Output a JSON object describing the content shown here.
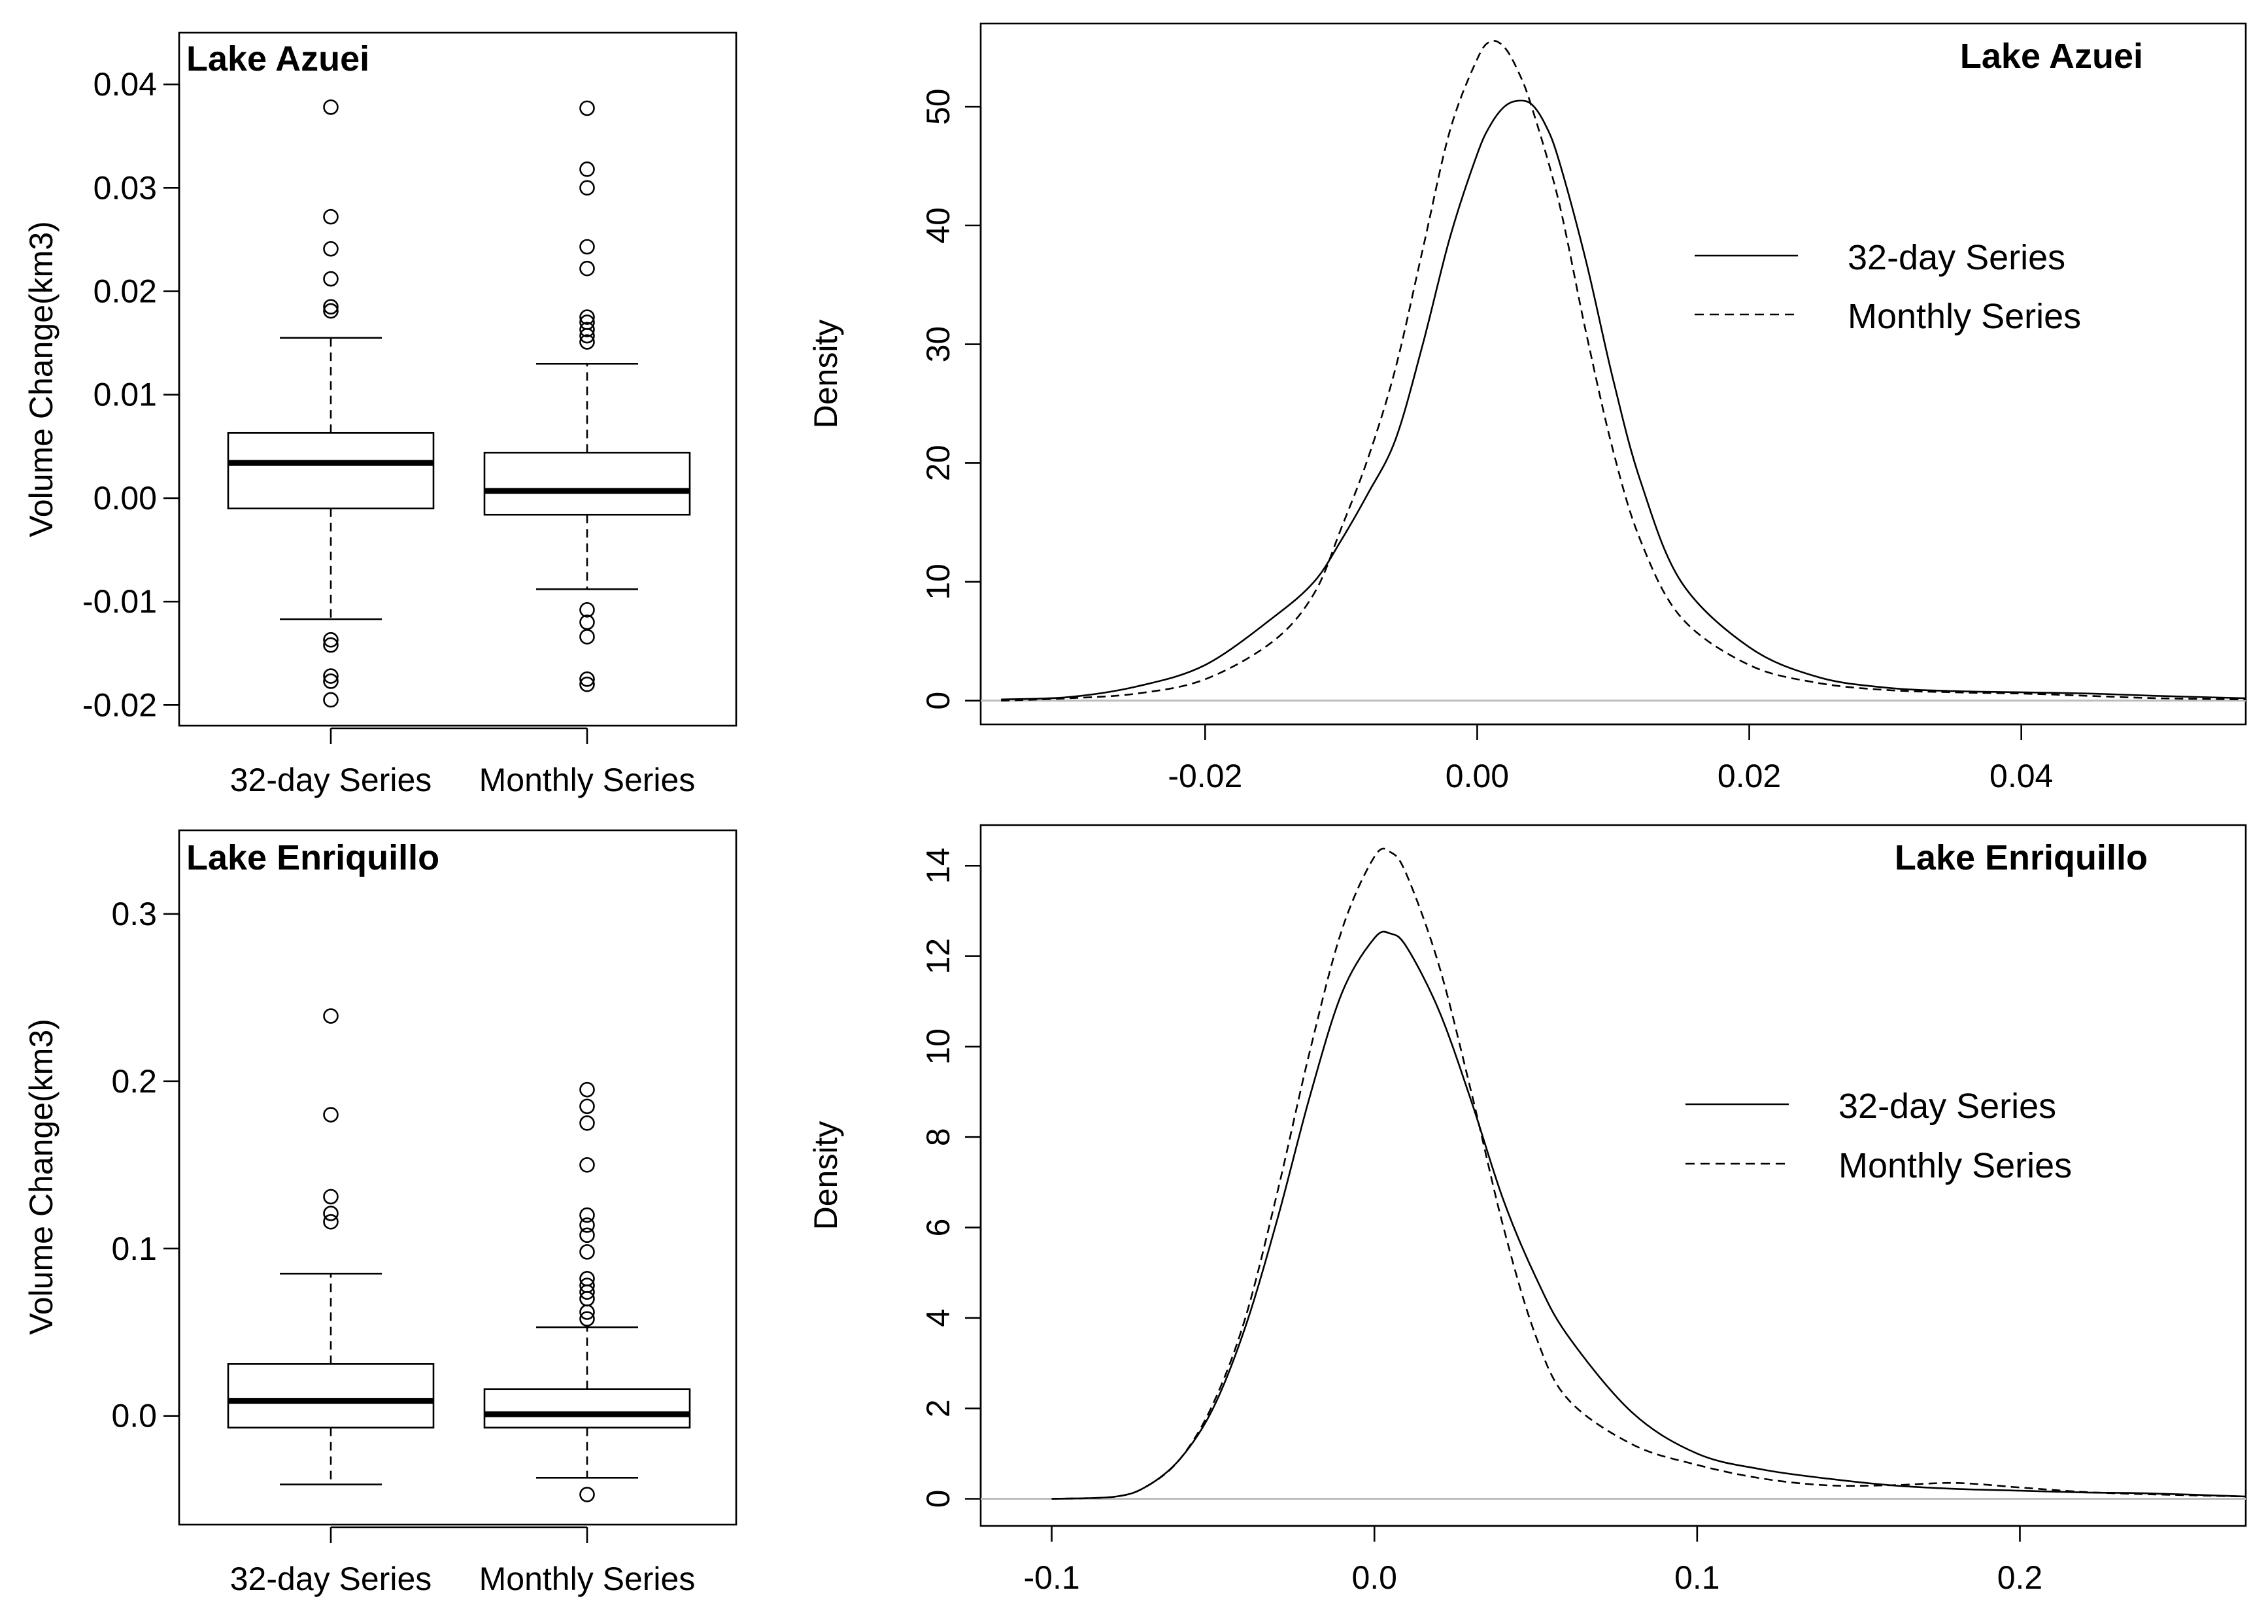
{
  "figure": {
    "panels": [
      {
        "id": "box-azuei",
        "title": "Lake Azuei",
        "ylabel": "Volume Change(km3)"
      },
      {
        "id": "dens-azuei",
        "title": "Lake Azuei",
        "ylabel": "Density"
      },
      {
        "id": "box-enriquillo",
        "title": "Lake Enriquillo",
        "ylabel": "Volume Change(km3)"
      },
      {
        "id": "dens-enriquillo",
        "title": "Lake Enriquillo",
        "ylabel": "Density"
      }
    ],
    "legend": [
      "32-day Series",
      "Monthly Series"
    ]
  },
  "chart_data": [
    {
      "type": "box",
      "title": "Lake Azuei",
      "ylabel": "Volume Change(km3)",
      "xlabel": "",
      "ylim": [
        -0.022,
        0.045
      ],
      "yticks": [
        -0.02,
        -0.01,
        0.0,
        0.01,
        0.02,
        0.03,
        0.04
      ],
      "ytick_labels": [
        "-0.02",
        "-0.01",
        "0.00",
        "0.01",
        "0.02",
        "0.03",
        "0.04"
      ],
      "categories": [
        "32-day Series",
        "Monthly Series"
      ],
      "boxes": [
        {
          "name": "32-day Series",
          "q1": -0.001,
          "median": 0.0034,
          "q3": 0.0063,
          "whisker_low": -0.0117,
          "whisker_high": 0.0155,
          "outliers": [
            0.0378,
            0.0272,
            0.0241,
            0.0212,
            0.0185,
            0.0181,
            -0.0137,
            -0.0142,
            -0.0172,
            -0.0177,
            -0.0195
          ]
        },
        {
          "name": "Monthly Series",
          "q1": -0.0016,
          "median": 0.0007,
          "q3": 0.0044,
          "whisker_low": -0.0088,
          "whisker_high": 0.013,
          "outliers": [
            0.0377,
            0.0318,
            0.03,
            0.0243,
            0.0222,
            0.0175,
            0.017,
            0.0163,
            0.0157,
            0.0151,
            -0.0108,
            -0.012,
            -0.0134,
            -0.0175,
            -0.018
          ]
        }
      ]
    },
    {
      "type": "line",
      "title": "Lake Azuei",
      "xlabel": "",
      "ylabel": "Density",
      "xlim": [
        -0.0365,
        0.0565
      ],
      "ylim": [
        -2,
        57
      ],
      "xticks": [
        -0.02,
        0.0,
        0.02,
        0.04
      ],
      "xtick_labels": [
        "-0.02",
        "0.00",
        "0.02",
        "0.04"
      ],
      "yticks": [
        0,
        10,
        20,
        30,
        40,
        50
      ],
      "ytick_labels": [
        "0",
        "10",
        "20",
        "30",
        "40",
        "50"
      ],
      "series": [
        {
          "name": "32-day Series",
          "style": "solid",
          "x": [
            -0.035,
            -0.03,
            -0.025,
            -0.02,
            -0.015,
            -0.012,
            -0.01,
            -0.008,
            -0.006,
            -0.004,
            -0.002,
            0.0,
            0.001,
            0.002,
            0.003,
            0.004,
            0.005,
            0.006,
            0.008,
            0.01,
            0.012,
            0.015,
            0.02,
            0.025,
            0.03,
            0.035,
            0.04,
            0.045,
            0.05,
            0.0565
          ],
          "y": [
            0.1,
            0.3,
            1.2,
            3.0,
            7.0,
            10.0,
            13.5,
            17.5,
            22.0,
            30.0,
            39.0,
            46.0,
            48.5,
            50.0,
            50.5,
            50.2,
            48.5,
            45.5,
            37.0,
            27.0,
            18.5,
            10.0,
            4.5,
            2.0,
            1.1,
            0.8,
            0.7,
            0.6,
            0.4,
            0.2
          ]
        },
        {
          "name": "Monthly Series",
          "style": "dashed",
          "x": [
            -0.035,
            -0.03,
            -0.025,
            -0.02,
            -0.015,
            -0.012,
            -0.01,
            -0.008,
            -0.006,
            -0.004,
            -0.002,
            0.0,
            0.001,
            0.002,
            0.003,
            0.004,
            0.006,
            0.008,
            0.01,
            0.012,
            0.015,
            0.02,
            0.025,
            0.03,
            0.035,
            0.04,
            0.045,
            0.05,
            0.0565
          ],
          "y": [
            0.0,
            0.2,
            0.6,
            1.8,
            5.0,
            9.0,
            14.5,
            20.5,
            28.0,
            38.0,
            48.0,
            54.0,
            55.5,
            55.0,
            53.0,
            50.0,
            42.0,
            31.0,
            21.0,
            13.5,
            7.0,
            3.0,
            1.5,
            0.9,
            0.7,
            0.6,
            0.4,
            0.2,
            0.1
          ]
        }
      ],
      "legend": [
        "32-day Series",
        "Monthly Series"
      ],
      "legend_position": "top-right"
    },
    {
      "type": "box",
      "title": "Lake Enriquillo",
      "ylabel": "Volume Change(km3)",
      "xlabel": "",
      "ylim": [
        -0.065,
        0.35
      ],
      "yticks": [
        0.0,
        0.1,
        0.2,
        0.3
      ],
      "ytick_labels": [
        "0.0",
        "0.1",
        "0.2",
        "0.3"
      ],
      "categories": [
        "32-day Series",
        "Monthly Series"
      ],
      "boxes": [
        {
          "name": "32-day Series",
          "q1": -0.007,
          "median": 0.009,
          "q3": 0.031,
          "whisker_low": -0.041,
          "whisker_high": 0.085,
          "outliers": [
            0.239,
            0.18,
            0.131,
            0.121,
            0.116
          ]
        },
        {
          "name": "Monthly Series",
          "q1": -0.007,
          "median": 0.001,
          "q3": 0.016,
          "whisker_low": -0.037,
          "whisker_high": 0.053,
          "outliers": [
            0.195,
            0.185,
            0.175,
            0.15,
            0.12,
            0.114,
            0.108,
            0.098,
            0.082,
            0.078,
            0.074,
            0.07,
            0.062,
            0.058,
            -0.047
          ]
        }
      ]
    },
    {
      "type": "line",
      "title": "Lake Enriquillo",
      "xlabel": "",
      "ylabel": "Density",
      "xlim": [
        -0.122,
        0.27
      ],
      "ylim": [
        -0.6,
        14.9
      ],
      "xticks": [
        -0.1,
        0.0,
        0.1,
        0.2
      ],
      "xtick_labels": [
        "-0.1",
        "0.0",
        "0.1",
        "0.2"
      ],
      "yticks": [
        0,
        2,
        4,
        6,
        8,
        10,
        12,
        14
      ],
      "ytick_labels": [
        "0",
        "2",
        "4",
        "6",
        "8",
        "10",
        "12",
        "14"
      ],
      "series": [
        {
          "name": "32-day Series",
          "style": "solid",
          "x": [
            -0.1,
            -0.08,
            -0.07,
            -0.06,
            -0.05,
            -0.04,
            -0.03,
            -0.02,
            -0.01,
            0.0,
            0.005,
            0.01,
            0.02,
            0.03,
            0.04,
            0.05,
            0.06,
            0.08,
            0.1,
            0.12,
            0.14,
            0.16,
            0.18,
            0.2,
            0.22,
            0.24,
            0.27
          ],
          "y": [
            0.0,
            0.05,
            0.3,
            0.9,
            2.0,
            3.8,
            6.2,
            8.9,
            11.2,
            12.4,
            12.5,
            12.2,
            10.8,
            8.8,
            6.6,
            4.9,
            3.6,
            1.9,
            1.0,
            0.65,
            0.45,
            0.3,
            0.22,
            0.18,
            0.14,
            0.12,
            0.05
          ]
        },
        {
          "name": "Monthly Series",
          "style": "dashed",
          "x": [
            -0.1,
            -0.08,
            -0.07,
            -0.06,
            -0.05,
            -0.04,
            -0.03,
            -0.02,
            -0.01,
            0.0,
            0.005,
            0.01,
            0.02,
            0.03,
            0.04,
            0.05,
            0.06,
            0.08,
            0.1,
            0.12,
            0.14,
            0.16,
            0.18,
            0.2,
            0.22,
            0.24,
            0.27
          ],
          "y": [
            0.0,
            0.05,
            0.3,
            0.9,
            2.1,
            4.0,
            6.8,
            9.9,
            12.6,
            14.2,
            14.3,
            13.8,
            11.8,
            9.0,
            6.0,
            3.6,
            2.2,
            1.2,
            0.75,
            0.45,
            0.3,
            0.3,
            0.35,
            0.25,
            0.15,
            0.1,
            0.05
          ]
        }
      ],
      "legend": [
        "32-day Series",
        "Monthly Series"
      ],
      "legend_position": "right"
    }
  ]
}
